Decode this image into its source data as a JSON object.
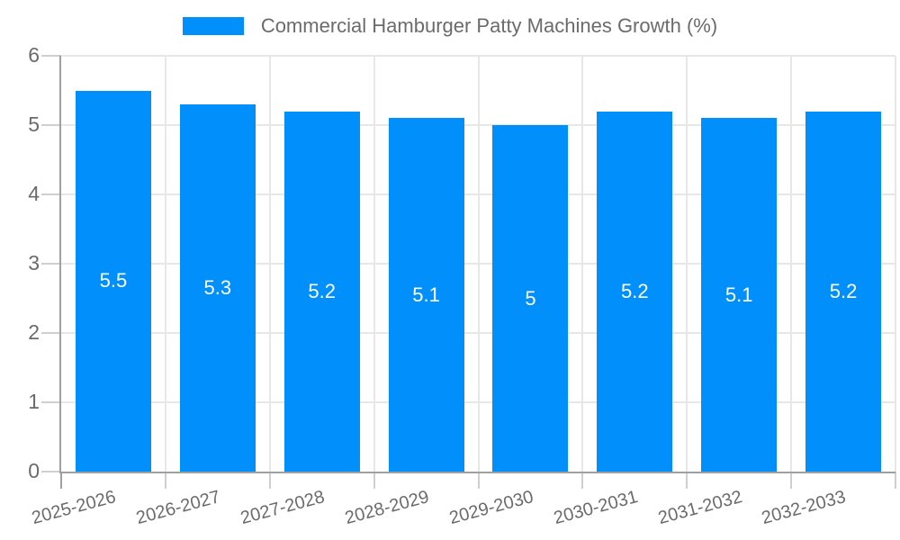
{
  "legend": {
    "label": "Commercial Hamburger Patty Machines Growth (%)"
  },
  "chart_data": {
    "type": "bar",
    "title": "Commercial Hamburger Patty Machines Growth (%)",
    "categories": [
      "2025-2026",
      "2026-2027",
      "2027-2028",
      "2028-2029",
      "2029-2030",
      "2030-2031",
      "2031-2032",
      "2032-2033"
    ],
    "values": [
      5.5,
      5.3,
      5.2,
      5.1,
      5,
      5.2,
      5.1,
      5.2
    ],
    "value_labels": [
      "5.5",
      "5.3",
      "5.2",
      "5.1",
      "5",
      "5.2",
      "5.1",
      "5.2"
    ],
    "series": [
      {
        "name": "Commercial Hamburger Patty Machines Growth (%)",
        "values": [
          5.5,
          5.3,
          5.2,
          5.1,
          5,
          5.2,
          5.1,
          5.2
        ]
      }
    ],
    "xlabel": "",
    "ylabel": "",
    "ylim": [
      0,
      6
    ],
    "yticks": [
      0,
      1,
      2,
      3,
      4,
      5,
      6
    ],
    "grid": true,
    "legend_position": "top",
    "colors": {
      "bar": "#008FFB",
      "bar_label": "#ffffff",
      "axis_line": "#a0a0a0",
      "tick_line": "#cfcfcf",
      "grid_line": "#e7e7e7",
      "axis_text": "#6b6b6b",
      "legend_text": "#6b6b6b",
      "background": "#ffffff"
    }
  }
}
